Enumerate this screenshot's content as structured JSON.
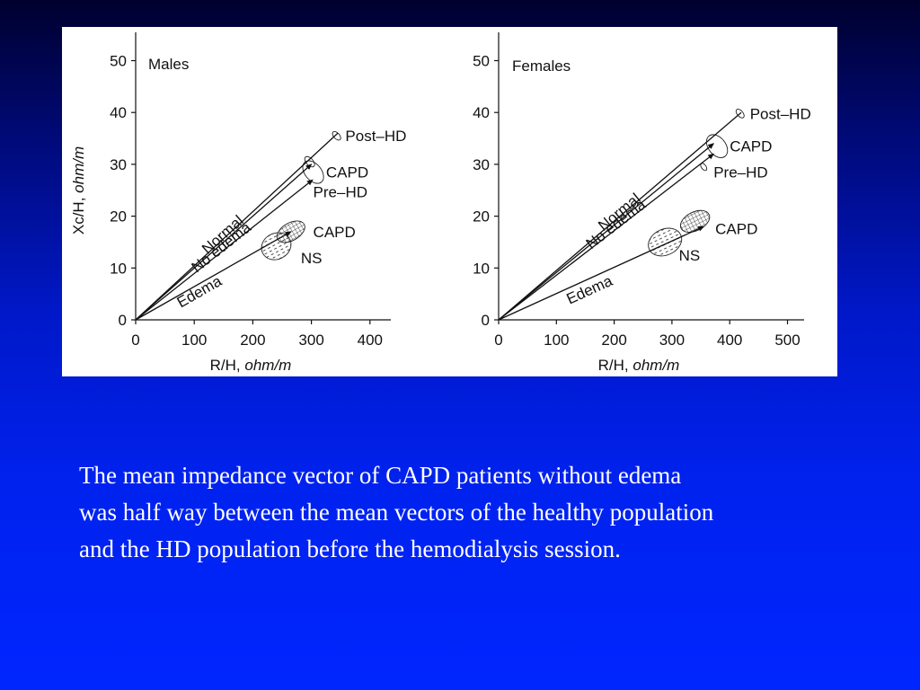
{
  "chart_data": [
    {
      "type": "line",
      "title": "Males",
      "xlabel": "R/H,",
      "xlabel_unit": "ohm/m",
      "ylabel": "Xc/H,",
      "ylabel_unit": "ohm/m",
      "xlim": [
        0,
        430
      ],
      "ylim": [
        0,
        52
      ],
      "xticks": [
        "0",
        "100",
        "200",
        "300",
        "400"
      ],
      "yticks": [
        "0",
        "10",
        "20",
        "30",
        "40",
        "50"
      ],
      "vectors": [
        {
          "name": "Normal",
          "end": [
            300,
            30
          ]
        },
        {
          "name": "No edema",
          "end": [
            302,
            27
          ]
        },
        {
          "name": "Edema",
          "end": [
            265,
            17
          ]
        },
        {
          "name": "Post–HD",
          "end": [
            345,
            36
          ]
        }
      ],
      "ellipses": [
        {
          "name": "Post–HD",
          "center": [
            343,
            35.5
          ],
          "rx": 5,
          "ry": 1
        },
        {
          "name": "Normal (healthy)",
          "center": [
            297,
            30.5
          ],
          "rx": 6,
          "ry": 1.2
        },
        {
          "name": "CAPD",
          "center": [
            303,
            28.5
          ],
          "rx": 14,
          "ry": 2.5
        },
        {
          "name": "CAPD (edema)",
          "center": [
            265,
            17
          ],
          "rx": 26,
          "ry": 1.7
        },
        {
          "name": "NS",
          "center": [
            240,
            14.2
          ],
          "rx": 26,
          "ry": 2.5
        }
      ],
      "labels": [
        {
          "text": "Post–HD",
          "at": [
            358,
            35.5
          ]
        },
        {
          "text": "CAPD",
          "at": [
            325,
            28.5
          ]
        },
        {
          "text": "Pre–HD",
          "at": [
            303,
            24.7
          ]
        },
        {
          "text": "CAPD",
          "at": [
            303,
            17
          ]
        },
        {
          "text": "NS",
          "at": [
            282,
            12
          ]
        }
      ]
    },
    {
      "type": "line",
      "title": "Females",
      "xlabel": "R/H,",
      "xlabel_unit": "ohm/m",
      "ylabel": "",
      "xlim": [
        0,
        530
      ],
      "ylim": [
        0,
        52
      ],
      "xticks": [
        "0",
        "100",
        "200",
        "300",
        "400",
        "500"
      ],
      "yticks": [
        "0",
        "10",
        "20",
        "30",
        "40",
        "50"
      ],
      "vectors": [
        {
          "name": "Normal",
          "end": [
            372,
            34
          ]
        },
        {
          "name": "No edema",
          "end": [
            372,
            32
          ]
        },
        {
          "name": "Edema",
          "end": [
            355,
            18
          ]
        },
        {
          "name": "Post–HD",
          "end": [
            420,
            40
          ]
        }
      ],
      "ellipses": [
        {
          "name": "Post–HD",
          "center": [
            418,
            39.8
          ],
          "rx": 5,
          "ry": 1
        },
        {
          "name": "CAPD",
          "center": [
            378,
            33.5
          ],
          "rx": 15,
          "ry": 2.5
        },
        {
          "name": "Pre–HD",
          "center": [
            355,
            29.5
          ],
          "rx": 4,
          "ry": 0.8
        },
        {
          "name": "CAPD (edema)",
          "center": [
            340,
            19
          ],
          "rx": 27,
          "ry": 1.8
        },
        {
          "name": "NS",
          "center": [
            288,
            15
          ],
          "rx": 30,
          "ry": 2.5
        }
      ],
      "labels": [
        {
          "text": "Post–HD",
          "at": [
            435,
            39.8
          ]
        },
        {
          "text": "CAPD",
          "at": [
            400,
            33.5
          ]
        },
        {
          "text": "Pre–HD",
          "at": [
            372,
            28.5
          ]
        },
        {
          "text": "CAPD",
          "at": [
            375,
            17.6
          ]
        },
        {
          "text": "NS",
          "at": [
            312,
            12.5
          ]
        }
      ]
    }
  ],
  "caption": [
    "The mean impedance vector of CAPD patients without edema",
    "was half way between the mean vectors of the healthy population",
    "and the HD population before the hemodialysis session."
  ]
}
